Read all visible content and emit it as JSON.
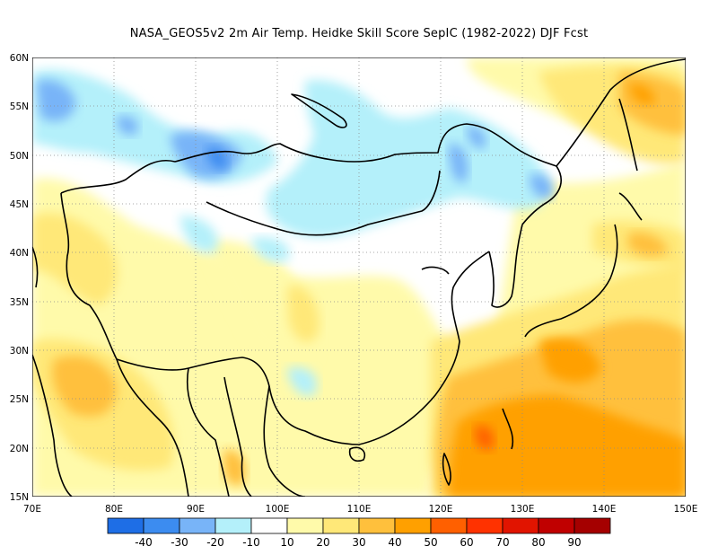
{
  "title": "NASA_GEOS5v2  2m Air Temp. Heidke Skill Score SepIC (1982-2022) DJF Fcst",
  "map": {
    "lon_range": [
      70,
      150
    ],
    "lat_range": [
      15,
      60
    ],
    "lon_ticks": [
      "70E",
      "80E",
      "90E",
      "100E",
      "110E",
      "120E",
      "130E",
      "140E",
      "150E"
    ],
    "lat_ticks": [
      "15N",
      "20N",
      "25N",
      "30N",
      "35N",
      "40N",
      "45N",
      "50N",
      "55N",
      "60N"
    ],
    "grid": "dotted",
    "coastlines": "black"
  },
  "colorbar": {
    "labels": [
      "-40",
      "-30",
      "-20",
      "-10",
      "10",
      "20",
      "30",
      "40",
      "50",
      "60",
      "70",
      "80",
      "90"
    ],
    "colors": [
      "#1e6ee6",
      "#3c8cf0",
      "#78b4f8",
      "#b4f0fa",
      "#ffffff",
      "#fffaaa",
      "#ffe878",
      "#ffc03c",
      "#ffa000",
      "#ff6000",
      "#ff3200",
      "#e11400",
      "#c00000",
      "#a50000"
    ]
  }
}
